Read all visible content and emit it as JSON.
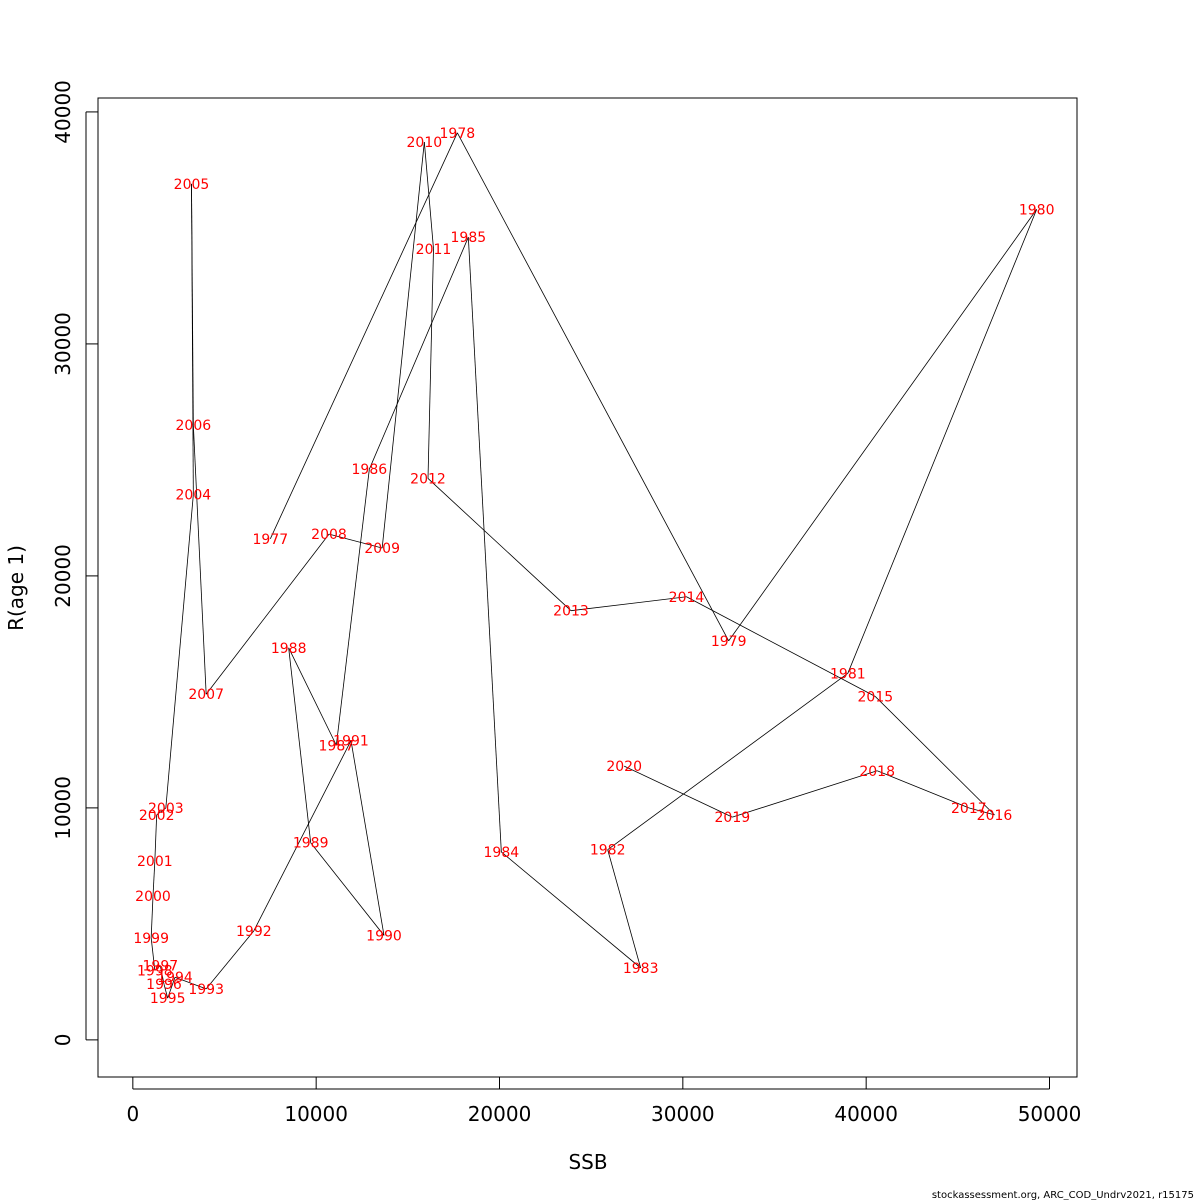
{
  "chart_data": {
    "type": "line",
    "title": "",
    "xlabel": "SSB",
    "ylabel": "R(age 1)",
    "xlim": [
      -1900,
      51500
    ],
    "ylim": [
      -1600,
      40600
    ],
    "xticks": [
      0,
      10000,
      20000,
      30000,
      40000,
      50000
    ],
    "yticks": [
      0,
      10000,
      20000,
      30000,
      40000
    ],
    "grid": false,
    "line_color": "#000000",
    "label_color": "#ff0000",
    "points": [
      {
        "label": "1977",
        "x": 7500,
        "y": 21600
      },
      {
        "label": "1978",
        "x": 17700,
        "y": 39100
      },
      {
        "label": "1979",
        "x": 32500,
        "y": 17200
      },
      {
        "label": "1980",
        "x": 49300,
        "y": 35800
      },
      {
        "label": "1981",
        "x": 39000,
        "y": 15800
      },
      {
        "label": "1982",
        "x": 25900,
        "y": 8200
      },
      {
        "label": "1983",
        "x": 27700,
        "y": 3100
      },
      {
        "label": "1984",
        "x": 20100,
        "y": 8100
      },
      {
        "label": "1985",
        "x": 18300,
        "y": 34600
      },
      {
        "label": "1986",
        "x": 12900,
        "y": 24600
      },
      {
        "label": "1987",
        "x": 11100,
        "y": 12700
      },
      {
        "label": "1988",
        "x": 8500,
        "y": 16900
      },
      {
        "label": "1989",
        "x": 9700,
        "y": 8500
      },
      {
        "label": "1990",
        "x": 13700,
        "y": 4500
      },
      {
        "label": "1991",
        "x": 11900,
        "y": 12900
      },
      {
        "label": "1992",
        "x": 6600,
        "y": 4700
      },
      {
        "label": "1993",
        "x": 4000,
        "y": 2200
      },
      {
        "label": "1994",
        "x": 2300,
        "y": 2700
      },
      {
        "label": "1995",
        "x": 1900,
        "y": 1800
      },
      {
        "label": "1996",
        "x": 1700,
        "y": 2400
      },
      {
        "label": "1997",
        "x": 1500,
        "y": 3200
      },
      {
        "label": "1998",
        "x": 1200,
        "y": 3000
      },
      {
        "label": "1999",
        "x": 1000,
        "y": 4400
      },
      {
        "label": "2000",
        "x": 1100,
        "y": 6200
      },
      {
        "label": "2001",
        "x": 1200,
        "y": 7700
      },
      {
        "label": "2002",
        "x": 1300,
        "y": 9700
      },
      {
        "label": "2003",
        "x": 1800,
        "y": 10000
      },
      {
        "label": "2004",
        "x": 3300,
        "y": 23500
      },
      {
        "label": "2005",
        "x": 3200,
        "y": 36900
      },
      {
        "label": "2006",
        "x": 3300,
        "y": 26500
      },
      {
        "label": "2007",
        "x": 4000,
        "y": 14900
      },
      {
        "label": "2008",
        "x": 10700,
        "y": 21800
      },
      {
        "label": "2009",
        "x": 13600,
        "y": 21200
      },
      {
        "label": "2010",
        "x": 15900,
        "y": 38700
      },
      {
        "label": "2011",
        "x": 16400,
        "y": 34100
      },
      {
        "label": "2012",
        "x": 16100,
        "y": 24200
      },
      {
        "label": "2013",
        "x": 23900,
        "y": 18500
      },
      {
        "label": "2014",
        "x": 30200,
        "y": 19100
      },
      {
        "label": "2015",
        "x": 40500,
        "y": 14800
      },
      {
        "label": "2016",
        "x": 47000,
        "y": 9700
      },
      {
        "label": "2017",
        "x": 45600,
        "y": 10000
      },
      {
        "label": "2018",
        "x": 40600,
        "y": 11600
      },
      {
        "label": "2019",
        "x": 32700,
        "y": 9600
      },
      {
        "label": "2020",
        "x": 26800,
        "y": 11800
      }
    ]
  },
  "credit": "stockassessment.org, ARC_COD_Undrv2021, r15175"
}
